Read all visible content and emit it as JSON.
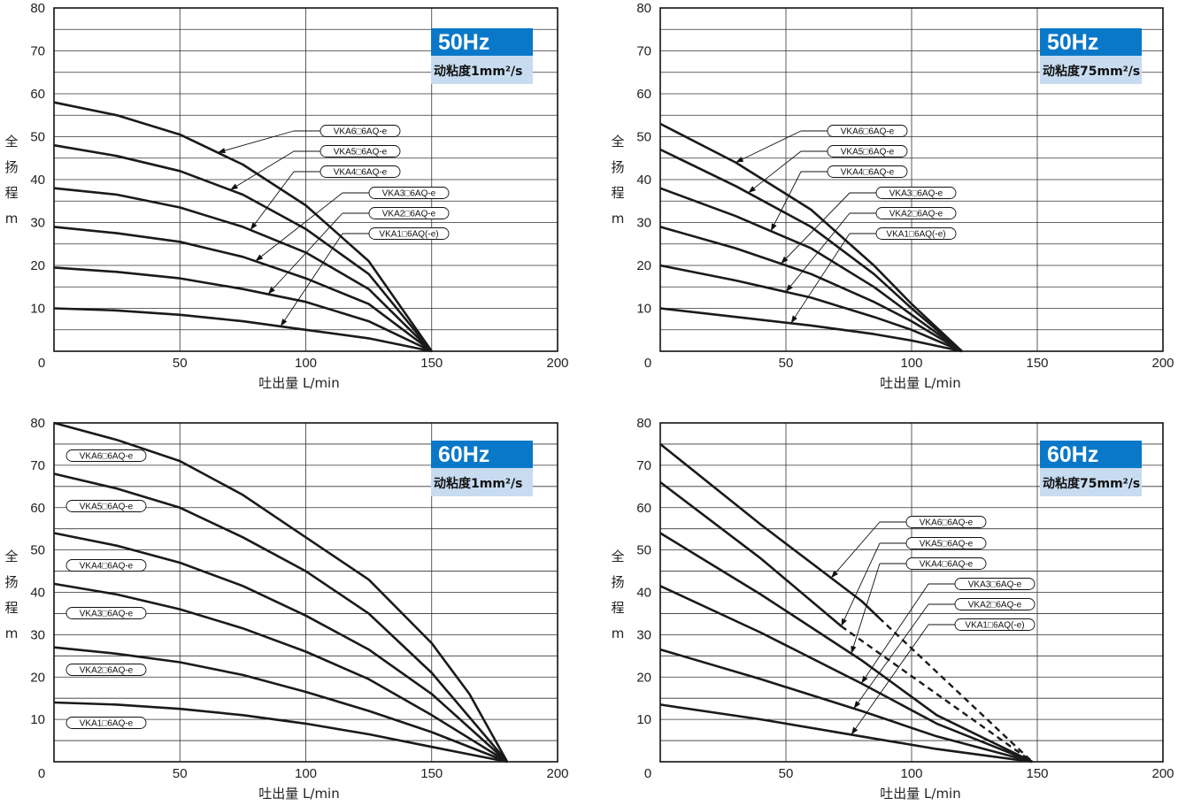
{
  "colors": {
    "badge_blue": "#0a78c8",
    "badge_light": "#c7dcf0",
    "curve": "#1a1a1a",
    "grid": "#333333"
  },
  "chart_data": [
    {
      "type": "line",
      "freq": "50Hz",
      "viscosity": "动粘度1mm²/s",
      "xlabel": "吐出量  L/min",
      "ylabel": [
        "全",
        "扬",
        "程",
        "m"
      ],
      "xlim": [
        0,
        200
      ],
      "ylim": [
        0,
        80
      ],
      "xticks": [
        0,
        50,
        100,
        150,
        200
      ],
      "yticks": [
        10,
        20,
        30,
        40,
        50,
        60,
        70,
        80
      ],
      "label_style": "callout",
      "series": [
        {
          "name": "VKA6□6AQ-e",
          "points": [
            [
              0,
              58
            ],
            [
              25,
              55
            ],
            [
              50,
              50.5
            ],
            [
              75,
              43.5
            ],
            [
              100,
              34
            ],
            [
              125,
              21
            ],
            [
              150,
              0
            ]
          ]
        },
        {
          "name": "VKA5□6AQ-e",
          "points": [
            [
              0,
              48
            ],
            [
              25,
              45.5
            ],
            [
              50,
              42
            ],
            [
              75,
              36.5
            ],
            [
              100,
              28.5
            ],
            [
              125,
              18
            ],
            [
              150,
              0
            ]
          ]
        },
        {
          "name": "VKA4□6AQ-e",
          "points": [
            [
              0,
              38
            ],
            [
              25,
              36.5
            ],
            [
              50,
              33.5
            ],
            [
              75,
              29
            ],
            [
              100,
              23
            ],
            [
              125,
              14.5
            ],
            [
              150,
              0
            ]
          ]
        },
        {
          "name": "VKA3□6AQ-e",
          "points": [
            [
              0,
              29
            ],
            [
              25,
              27.5
            ],
            [
              50,
              25.5
            ],
            [
              75,
              22
            ],
            [
              100,
              17
            ],
            [
              125,
              11
            ],
            [
              150,
              0
            ]
          ]
        },
        {
          "name": "VKA2□6AQ-e",
          "points": [
            [
              0,
              19.5
            ],
            [
              25,
              18.5
            ],
            [
              50,
              17
            ],
            [
              75,
              14.5
            ],
            [
              100,
              11.5
            ],
            [
              125,
              7
            ],
            [
              150,
              0
            ]
          ]
        },
        {
          "name": "VKA1□6AQ(-e)",
          "points": [
            [
              0,
              10
            ],
            [
              25,
              9.5
            ],
            [
              50,
              8.5
            ],
            [
              75,
              7
            ],
            [
              100,
              5
            ],
            [
              125,
              3
            ],
            [
              150,
              0
            ]
          ]
        }
      ]
    },
    {
      "type": "line",
      "freq": "50Hz",
      "viscosity": "动粘度75mm²/s",
      "xlabel": "吐出量  L/min",
      "ylabel": [
        "全",
        "扬",
        "程",
        "m"
      ],
      "xlim": [
        0,
        200
      ],
      "ylim": [
        0,
        80
      ],
      "xticks": [
        0,
        50,
        100,
        150,
        200
      ],
      "yticks": [
        10,
        20,
        30,
        40,
        50,
        60,
        70,
        80
      ],
      "label_style": "callout",
      "series": [
        {
          "name": "VKA6□6AQ-e",
          "points": [
            [
              0,
              53
            ],
            [
              30,
              44
            ],
            [
              60,
              33
            ],
            [
              85,
              20
            ],
            [
              100,
              11
            ],
            [
              120,
              0
            ]
          ]
        },
        {
          "name": "VKA5□6AQ-e",
          "points": [
            [
              0,
              47
            ],
            [
              30,
              38.5
            ],
            [
              60,
              29
            ],
            [
              85,
              18
            ],
            [
              100,
              10
            ],
            [
              120,
              0
            ]
          ]
        },
        {
          "name": "VKA4□6AQ-e",
          "points": [
            [
              0,
              38
            ],
            [
              30,
              31.5
            ],
            [
              60,
              24
            ],
            [
              85,
              15
            ],
            [
              100,
              8.5
            ],
            [
              120,
              0
            ]
          ]
        },
        {
          "name": "VKA3□6AQ-e",
          "points": [
            [
              0,
              29
            ],
            [
              30,
              24
            ],
            [
              60,
              18
            ],
            [
              85,
              11.5
            ],
            [
              100,
              7
            ],
            [
              120,
              0
            ]
          ]
        },
        {
          "name": "VKA2□6AQ-e",
          "points": [
            [
              0,
              20
            ],
            [
              30,
              16.5
            ],
            [
              60,
              12.5
            ],
            [
              85,
              8
            ],
            [
              100,
              5
            ],
            [
              120,
              0
            ]
          ]
        },
        {
          "name": "VKA1□6AQ(-e)",
          "points": [
            [
              0,
              10
            ],
            [
              30,
              8
            ],
            [
              60,
              6
            ],
            [
              85,
              4
            ],
            [
              100,
              2.5
            ],
            [
              120,
              0
            ]
          ]
        }
      ]
    },
    {
      "type": "line",
      "freq": "60Hz",
      "viscosity": "动粘度1mm²/s",
      "xlabel": "吐出量  L/min",
      "ylabel": [
        "全",
        "扬",
        "程",
        "m"
      ],
      "xlim": [
        0,
        200
      ],
      "ylim": [
        0,
        80
      ],
      "xticks": [
        0,
        50,
        100,
        150,
        200
      ],
      "yticks": [
        10,
        20,
        30,
        40,
        50,
        60,
        70,
        80
      ],
      "label_style": "left",
      "series": [
        {
          "name": "VKA6□6AQ-e",
          "points": [
            [
              0,
              80
            ],
            [
              25,
              76
            ],
            [
              50,
              71
            ],
            [
              75,
              63
            ],
            [
              100,
              53
            ],
            [
              125,
              43
            ],
            [
              150,
              28
            ],
            [
              165,
              16
            ],
            [
              180,
              0
            ]
          ]
        },
        {
          "name": "VKA5□6AQ-e",
          "points": [
            [
              0,
              68
            ],
            [
              25,
              64.5
            ],
            [
              50,
              60
            ],
            [
              75,
              53
            ],
            [
              100,
              45
            ],
            [
              125,
              35
            ],
            [
              150,
              21
            ],
            [
              180,
              0
            ]
          ]
        },
        {
          "name": "VKA4□6AQ-e",
          "points": [
            [
              0,
              54
            ],
            [
              25,
              51
            ],
            [
              50,
              47
            ],
            [
              75,
              41.5
            ],
            [
              100,
              34.5
            ],
            [
              125,
              26.5
            ],
            [
              150,
              16
            ],
            [
              180,
              0
            ]
          ]
        },
        {
          "name": "VKA3□6AQ-e",
          "points": [
            [
              0,
              42
            ],
            [
              25,
              39.5
            ],
            [
              50,
              36
            ],
            [
              75,
              31.5
            ],
            [
              100,
              26
            ],
            [
              125,
              19.5
            ],
            [
              150,
              11
            ],
            [
              180,
              0
            ]
          ]
        },
        {
          "name": "VKA2□6AQ-e",
          "points": [
            [
              0,
              27
            ],
            [
              25,
              25.5
            ],
            [
              50,
              23.5
            ],
            [
              75,
              20.5
            ],
            [
              100,
              16.5
            ],
            [
              125,
              12
            ],
            [
              150,
              7
            ],
            [
              180,
              0
            ]
          ]
        },
        {
          "name": "VKA1□6AQ-e",
          "points": [
            [
              0,
              14
            ],
            [
              25,
              13.5
            ],
            [
              50,
              12.5
            ],
            [
              75,
              11
            ],
            [
              100,
              9
            ],
            [
              125,
              6.5
            ],
            [
              150,
              3.5
            ],
            [
              180,
              0
            ]
          ]
        }
      ]
    },
    {
      "type": "line",
      "freq": "60Hz",
      "viscosity": "动粘度75mm²/s",
      "xlabel": "吐出量  L/min",
      "ylabel": [
        "全",
        "扬",
        "程",
        "m"
      ],
      "xlim": [
        0,
        200
      ],
      "ylim": [
        0,
        80
      ],
      "xticks": [
        0,
        50,
        100,
        150,
        200
      ],
      "yticks": [
        10,
        20,
        30,
        40,
        50,
        60,
        70,
        80
      ],
      "label_style": "callout",
      "series": [
        {
          "name": "VKA6□6AQ-e",
          "points": [
            [
              0,
              75
            ],
            [
              40,
              56
            ],
            [
              80,
              38
            ],
            [
              87,
              34
            ]
          ],
          "dashed_to": [
            [
              87,
              34
            ],
            [
              148,
              0
            ]
          ]
        },
        {
          "name": "VKA5□6AQ-e",
          "points": [
            [
              0,
              66
            ],
            [
              40,
              48
            ],
            [
              72,
              32
            ]
          ],
          "dashed_to": [
            [
              72,
              32
            ],
            [
              148,
              0
            ]
          ]
        },
        {
          "name": "VKA4□6AQ-e",
          "points": [
            [
              0,
              54
            ],
            [
              40,
              39.5
            ],
            [
              80,
              24
            ],
            [
              110,
              11
            ],
            [
              148,
              0
            ]
          ]
        },
        {
          "name": "VKA3□6AQ-e",
          "points": [
            [
              0,
              41.5
            ],
            [
              40,
              30.5
            ],
            [
              80,
              18.5
            ],
            [
              110,
              9
            ],
            [
              148,
              0
            ]
          ]
        },
        {
          "name": "VKA2□6AQ-e",
          "points": [
            [
              0,
              26.5
            ],
            [
              40,
              19.5
            ],
            [
              80,
              12
            ],
            [
              110,
              6
            ],
            [
              148,
              0
            ]
          ]
        },
        {
          "name": "VKA1□6AQ(-e)",
          "points": [
            [
              0,
              13.5
            ],
            [
              40,
              10
            ],
            [
              80,
              6
            ],
            [
              110,
              3
            ],
            [
              148,
              0
            ]
          ]
        }
      ]
    }
  ]
}
